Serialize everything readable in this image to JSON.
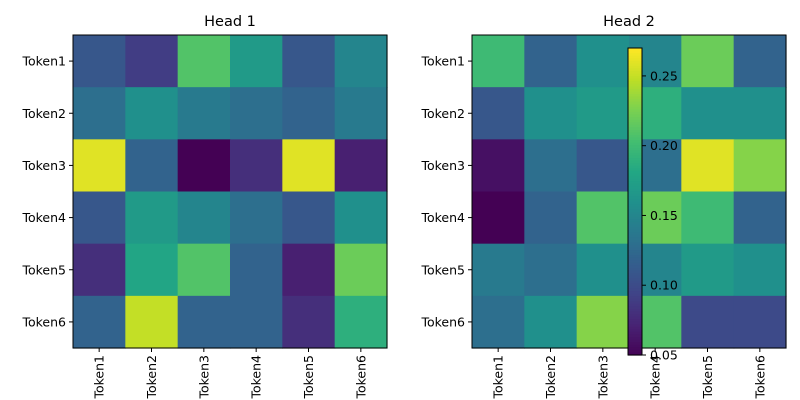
{
  "chart_data": {
    "type": "heatmap",
    "colormap": "viridis",
    "color_range": [
      0.05,
      0.27
    ],
    "colorbar": {
      "ticks": [
        0.05,
        0.1,
        0.15,
        0.2,
        0.25
      ],
      "tick_labels": [
        "0.05",
        "0.10",
        "0.15",
        "0.20",
        "0.25"
      ]
    },
    "x_tick_labels": [
      "Token1",
      "Token2",
      "Token3",
      "Token4",
      "Token5",
      "Token6"
    ],
    "y_tick_labels": [
      "Token1",
      "Token2",
      "Token3",
      "Token4",
      "Token5",
      "Token6"
    ],
    "panels": [
      {
        "title": "Head 1",
        "values": [
          [
            0.11,
            0.09,
            0.21,
            0.17,
            0.11,
            0.15
          ],
          [
            0.13,
            0.16,
            0.14,
            0.13,
            0.12,
            0.14
          ],
          [
            0.26,
            0.12,
            0.05,
            0.08,
            0.26,
            0.07
          ],
          [
            0.11,
            0.17,
            0.15,
            0.13,
            0.11,
            0.16
          ],
          [
            0.08,
            0.18,
            0.21,
            0.12,
            0.07,
            0.22
          ],
          [
            0.12,
            0.25,
            0.12,
            0.12,
            0.08,
            0.19
          ]
        ]
      },
      {
        "title": "Head 2",
        "values": [
          [
            0.2,
            0.12,
            0.16,
            0.15,
            0.22,
            0.12
          ],
          [
            0.11,
            0.16,
            0.17,
            0.19,
            0.16,
            0.16
          ],
          [
            0.06,
            0.13,
            0.11,
            0.13,
            0.26,
            0.23
          ],
          [
            0.05,
            0.12,
            0.21,
            0.22,
            0.2,
            0.12
          ],
          [
            0.14,
            0.13,
            0.16,
            0.15,
            0.17,
            0.16
          ],
          [
            0.13,
            0.16,
            0.23,
            0.21,
            0.1,
            0.1
          ]
        ]
      }
    ]
  }
}
